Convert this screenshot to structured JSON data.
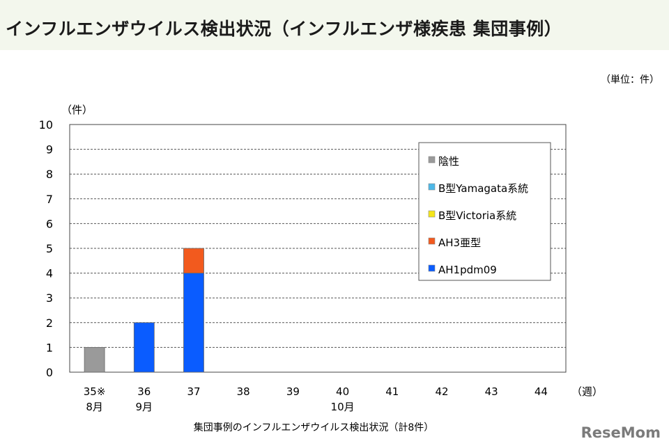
{
  "header": {
    "title": "インフルエンザウイルス検出状況（インフルエンザ様疾患 集団事例）",
    "unit_note": "（単位：件）"
  },
  "caption": "集団事例のインフルエンザウイルス検出状況（計8件）",
  "watermark": "ReseMom",
  "chart_data": {
    "type": "bar",
    "stacked": true,
    "ylabel": "（件）",
    "xlabel": "（週）",
    "ylim": [
      0,
      10
    ],
    "yticks": [
      "0",
      "1",
      "2",
      "3",
      "4",
      "5",
      "6",
      "7",
      "8",
      "9",
      "10"
    ],
    "categories": [
      "35※",
      "36",
      "37",
      "38",
      "39",
      "40",
      "41",
      "42",
      "43",
      "44"
    ],
    "month_labels": [
      "8月",
      "9月",
      "",
      "",
      "",
      "10月",
      "",
      "",
      "",
      ""
    ],
    "grid": true,
    "legend_position": "top-right",
    "series": [
      {
        "name": "AH1pdm09",
        "color": "#0a5cff",
        "values": [
          0,
          2,
          4,
          0,
          0,
          0,
          0,
          0,
          0,
          0
        ]
      },
      {
        "name": "AH3亜型",
        "color": "#f25a1e",
        "values": [
          0,
          0,
          1,
          0,
          0,
          0,
          0,
          0,
          0,
          0
        ]
      },
      {
        "name": "B型Victoria系統",
        "color": "#f5e61a",
        "values": [
          0,
          0,
          0,
          0,
          0,
          0,
          0,
          0,
          0,
          0
        ]
      },
      {
        "name": "B型Yamagata系統",
        "color": "#4db8e8",
        "values": [
          0,
          0,
          0,
          0,
          0,
          0,
          0,
          0,
          0,
          0
        ]
      },
      {
        "name": "陰性",
        "color": "#9a9a9a",
        "values": [
          1,
          0,
          0,
          0,
          0,
          0,
          0,
          0,
          0,
          0
        ]
      }
    ],
    "legend_order": [
      "陰性",
      "B型Yamagata系統",
      "B型Victoria系統",
      "AH3亜型",
      "AH1pdm09"
    ]
  }
}
